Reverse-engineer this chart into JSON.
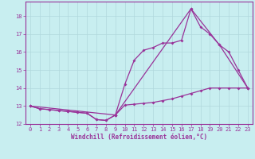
{
  "xlabel": "Windchill (Refroidissement éolien,°C)",
  "background_color": "#c8eef0",
  "grid_color": "#b0d8dc",
  "line_color": "#993399",
  "xlim": [
    -0.5,
    23.5
  ],
  "ylim": [
    12,
    18.8
  ],
  "yticks": [
    12,
    13,
    14,
    15,
    16,
    17,
    18
  ],
  "xticks": [
    0,
    1,
    2,
    3,
    4,
    5,
    6,
    7,
    8,
    9,
    10,
    11,
    12,
    13,
    14,
    15,
    16,
    17,
    18,
    19,
    20,
    21,
    22,
    23
  ],
  "series1_x": [
    0,
    1,
    2,
    3,
    4,
    5,
    6,
    7,
    8,
    9,
    10,
    11,
    12,
    13,
    14,
    15,
    16,
    17,
    18,
    19,
    20,
    21,
    22,
    23
  ],
  "series1_y": [
    13.0,
    12.85,
    12.8,
    12.75,
    12.7,
    12.65,
    12.6,
    12.25,
    12.2,
    12.5,
    13.05,
    13.1,
    13.15,
    13.2,
    13.3,
    13.4,
    13.55,
    13.7,
    13.85,
    14.0,
    14.0,
    14.0,
    14.0,
    14.0
  ],
  "series2_x": [
    0,
    1,
    2,
    3,
    4,
    5,
    6,
    7,
    8,
    9,
    10,
    11,
    12,
    13,
    14,
    15,
    16,
    17,
    18,
    19,
    20,
    21,
    22,
    23
  ],
  "series2_y": [
    13.0,
    12.85,
    12.8,
    12.75,
    12.7,
    12.65,
    12.6,
    12.25,
    12.2,
    12.5,
    14.2,
    15.55,
    16.1,
    16.25,
    16.5,
    16.5,
    16.65,
    18.4,
    17.4,
    17.0,
    16.4,
    16.0,
    15.0,
    14.0
  ],
  "series3_x": [
    0,
    9,
    17,
    20,
    23
  ],
  "series3_y": [
    13.0,
    12.5,
    18.4,
    16.4,
    14.0
  ]
}
